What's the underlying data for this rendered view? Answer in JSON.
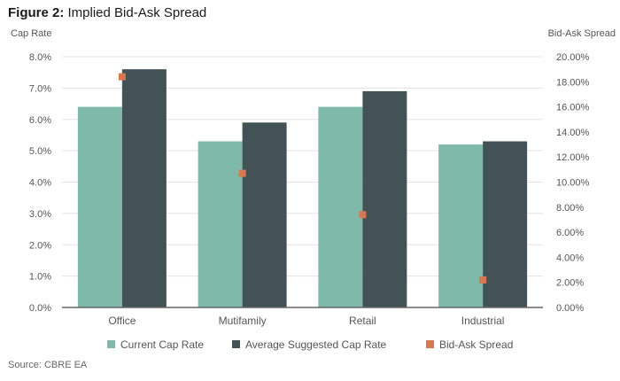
{
  "title_prefix": "Figure 2:",
  "title_rest": " Implied Bid-Ask Spread",
  "source": "Source: CBRE EA",
  "chart_data": {
    "type": "bar",
    "title": "Figure 2: Implied Bid-Ask Spread",
    "ylabel_left": "Cap Rate",
    "ylabel_right": "Bid-Ask Spread",
    "categories": [
      "Office",
      "Mutifamily",
      "Retail",
      "Industrial"
    ],
    "ylim_left": [
      0,
      8
    ],
    "ylim_right": [
      0,
      20
    ],
    "yticks_left": [
      "0.0%",
      "1.0%",
      "2.0%",
      "3.0%",
      "4.0%",
      "5.0%",
      "6.0%",
      "7.0%",
      "8.0%"
    ],
    "yticks_right": [
      "0.00%",
      "2.00%",
      "4.00%",
      "6.00%",
      "8.00%",
      "10.00%",
      "12.00%",
      "14.00%",
      "16.00%",
      "18.00%",
      "20.00%"
    ],
    "grid": true,
    "legend_position": "bottom",
    "series": [
      {
        "name": "Current Cap Rate",
        "type": "bar",
        "axis": "left",
        "color": "#7fb9aa",
        "values": [
          6.4,
          5.3,
          6.4,
          5.2
        ]
      },
      {
        "name": "Average Suggested Cap Rate",
        "type": "bar",
        "axis": "left",
        "color": "#435254",
        "values": [
          7.6,
          5.9,
          6.9,
          5.3
        ]
      },
      {
        "name": "Bid-Ask Spread",
        "type": "scatter",
        "axis": "right",
        "color": "#d9774f",
        "values": [
          18.4,
          10.7,
          7.4,
          2.2
        ]
      }
    ]
  }
}
